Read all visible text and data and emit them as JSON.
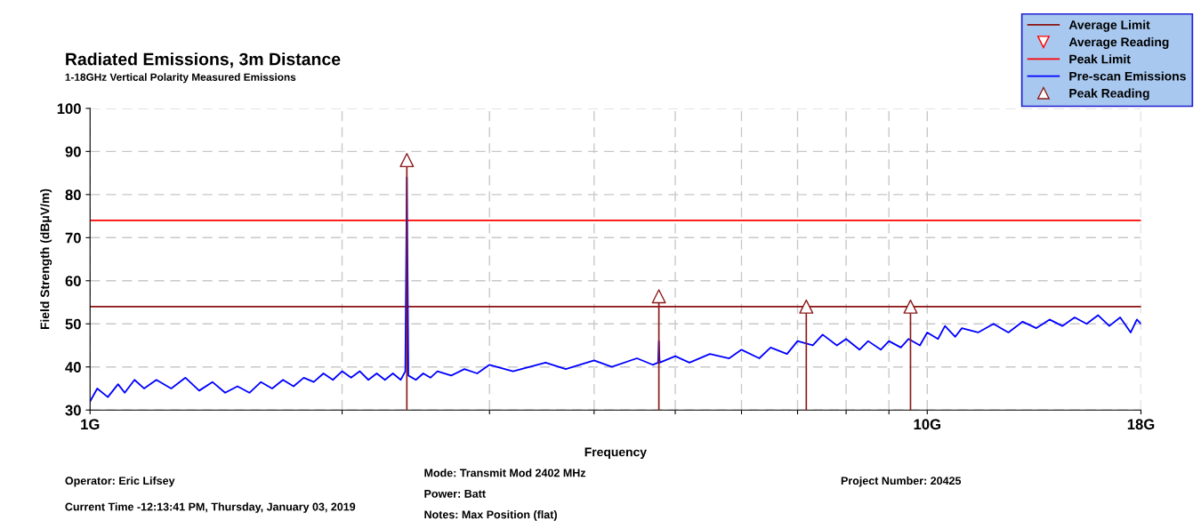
{
  "chart_data": {
    "type": "line",
    "title": "Radiated Emissions, 3m Distance",
    "subtitle": "1-18GHz Vertical Polarity Measured Emissions",
    "xlabel": "Frequency",
    "ylabel": "Field Strength (dBμV/m)",
    "log": "x",
    "xlim": [
      1,
      18
    ],
    "xticks": [
      {
        "value": 1,
        "label": "1G"
      },
      {
        "value": 2,
        "label": null
      },
      {
        "value": 3,
        "label": null
      },
      {
        "value": 4,
        "label": null
      },
      {
        "value": 5,
        "label": null
      },
      {
        "value": 6,
        "label": null
      },
      {
        "value": 7,
        "label": null
      },
      {
        "value": 8,
        "label": null
      },
      {
        "value": 9,
        "label": null
      },
      {
        "value": 10,
        "label": "10G"
      },
      {
        "value": 18,
        "label": "18G"
      }
    ],
    "ylim": [
      30,
      100
    ],
    "yticks": [
      30,
      40,
      50,
      60,
      70,
      80,
      90,
      100
    ],
    "grid": true,
    "legend": "top right",
    "series": [
      {
        "name": "Average Limit",
        "color": "#8b1010",
        "marker": "none",
        "x": [
          1,
          18
        ],
        "values": [
          54,
          54
        ]
      },
      {
        "name": "Average Reading",
        "type": "scatter",
        "color": "#ff0000",
        "marker": "triangle_down"
      },
      {
        "name": "Peak Limit",
        "color": "#ff0000",
        "marker": "none",
        "x": [
          1,
          18
        ],
        "values": [
          74,
          74
        ]
      },
      {
        "name": "Pre-scan Emissions",
        "color": "#0000ff",
        "marker": "none",
        "x": [
          1.0,
          1.02,
          1.05,
          1.08,
          1.1,
          1.13,
          1.16,
          1.2,
          1.25,
          1.3,
          1.35,
          1.4,
          1.45,
          1.5,
          1.55,
          1.6,
          1.65,
          1.7,
          1.75,
          1.8,
          1.85,
          1.9,
          1.95,
          2.0,
          2.05,
          2.1,
          2.15,
          2.2,
          2.25,
          2.3,
          2.35,
          2.38,
          2.39,
          2.4,
          2.45,
          2.5,
          2.55,
          2.6,
          2.7,
          2.8,
          2.9,
          3.0,
          3.2,
          3.5,
          3.7,
          4.0,
          4.2,
          4.5,
          4.7,
          4.77,
          4.78,
          4.79,
          5.0,
          5.2,
          5.5,
          5.8,
          6.0,
          6.3,
          6.5,
          6.8,
          7.0,
          7.3,
          7.5,
          7.8,
          8.0,
          8.3,
          8.5,
          8.8,
          9.0,
          9.3,
          9.5,
          9.8,
          10.0,
          10.3,
          10.5,
          10.8,
          11.0,
          11.5,
          12.0,
          12.5,
          13.0,
          13.5,
          14.0,
          14.5,
          15.0,
          15.5,
          16.0,
          16.5,
          17.0,
          17.5,
          17.8,
          18.0
        ],
        "values": [
          32,
          35,
          33,
          36,
          34,
          37,
          35,
          37,
          35,
          37.5,
          34.5,
          36.5,
          34,
          35.5,
          34,
          36.5,
          35,
          37,
          35.5,
          37.5,
          36.5,
          38.5,
          37,
          39,
          37.5,
          39,
          37,
          38.5,
          37,
          38.5,
          37,
          39,
          84,
          38,
          37,
          38.5,
          37.5,
          39,
          38,
          39.5,
          38.5,
          40.5,
          39,
          41,
          39.5,
          41.5,
          40,
          42,
          40.5,
          41,
          46,
          41,
          42.5,
          41,
          43,
          42,
          44,
          42,
          44.5,
          43,
          46,
          45,
          47.5,
          45,
          46.5,
          44,
          46,
          44,
          46,
          44.5,
          46.5,
          45,
          48,
          46.5,
          49.5,
          47,
          49,
          48,
          50,
          48,
          50.5,
          49,
          51,
          49.5,
          51.5,
          50,
          52,
          49.5,
          51.5,
          48,
          51,
          50
        ]
      },
      {
        "name": "Peak Reading",
        "type": "lollipop",
        "color": "#8b1a1a",
        "marker": "triangle",
        "x": [
          2.39,
          4.78,
          7.17,
          9.55
        ],
        "values": [
          88,
          56.4,
          54,
          54
        ]
      }
    ],
    "annotations": [
      "Operator: Eric Lifsey",
      "Current Time -12:13:41 PM, Thursday, January 03, 2019",
      "Mode: Transmit Mod 2402 MHz",
      "Power: Batt",
      "Notes: Max Position (flat)",
      "Project Number: 20425"
    ]
  }
}
